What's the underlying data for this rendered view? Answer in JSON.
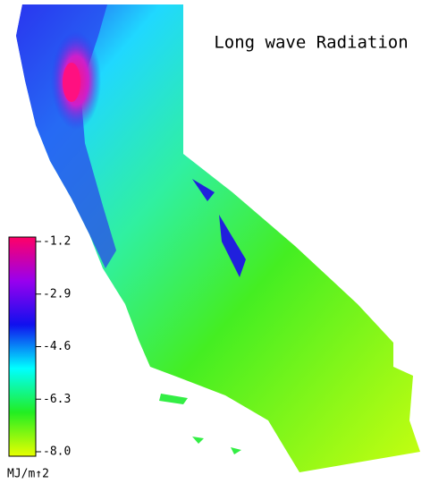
{
  "title": "Long wave Radiation",
  "colorbar": {
    "lim": [
      -8.0,
      -1.2
    ],
    "ticks": [
      -1.2,
      -2.9,
      -4.6,
      -6.3,
      {
        "value": -8.0,
        "label": "-8.0"
      }
    ],
    "colors": [
      "#e8ff00",
      "#22ee22",
      "#00ffff",
      "#1010ee",
      "#9900ee",
      "#ff0066"
    ],
    "unit": "MJ/m↑2"
  }
}
